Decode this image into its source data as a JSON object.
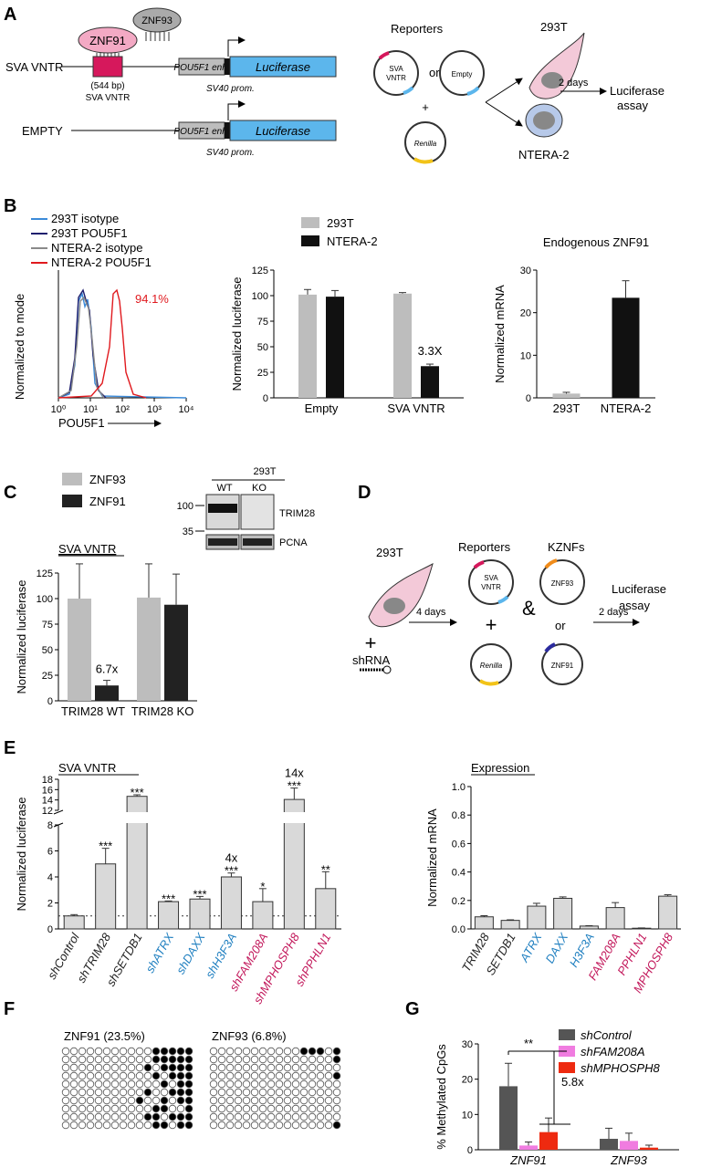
{
  "panels": {
    "A": "A",
    "B": "B",
    "C": "C",
    "D": "D",
    "E": "E",
    "F": "F",
    "G": "G"
  },
  "panelA": {
    "znf91": "ZNF91",
    "znf93": "ZNF93",
    "sva_vntr": "SVA VNTR",
    "vntr_len": "(544 bp)",
    "vntr_sub": "SVA VNTR",
    "enh": "POU5F1 enh.",
    "luc": "Luciferase",
    "sv40": "SV40 prom.",
    "empty": "EMPTY",
    "reporters": "Reporters",
    "or": "or",
    "plus": "+",
    "plasmid_sva": "SVA\nVNTR",
    "plasmid_empty": "Empty",
    "plasmid_renilla": "Renilla",
    "cell1": "293T",
    "cell2": "NTERA-2",
    "days": "2 days",
    "assay1": "Luciferase",
    "assay2": "assay"
  },
  "panelB_flow": {
    "legend": [
      {
        "name": "293T isotype",
        "color": "#3b8ad8"
      },
      {
        "name": "293T POU5F1",
        "color": "#1f1f6e"
      },
      {
        "name": "NTERA-2 isotype",
        "color": "#8a8a8a"
      },
      {
        "name": "NTERA-2 POU5F1",
        "color": "#e0191e"
      }
    ],
    "ylabel": "Normalized to mode",
    "xlabel": "POU5F1",
    "xticks": [
      "10⁰",
      "10¹",
      "10²",
      "10³",
      "10⁴"
    ],
    "pct": "94.1%"
  },
  "chart_data": [
    {
      "type": "bar",
      "id": "B-luciferase",
      "categories": [
        "Empty",
        "SVA VNTR"
      ],
      "series": [
        {
          "name": "293T",
          "values": [
            101,
            102
          ],
          "err": [
            5,
            1
          ],
          "color": "#bdbdbd"
        },
        {
          "name": "NTERA-2",
          "values": [
            99,
            31
          ],
          "err": [
            6,
            2
          ],
          "color": "#111111"
        }
      ],
      "ylabel": "Normalized luciferase",
      "ylim": [
        0,
        125
      ],
      "yticks": [
        "0",
        "25",
        "50",
        "75",
        "100",
        "125"
      ],
      "annotation": "3.3X"
    },
    {
      "type": "bar",
      "id": "B-endogenous",
      "title": "Endogenous ZNF91",
      "categories": [
        "293T",
        "NTERA-2"
      ],
      "values": [
        1,
        23.5
      ],
      "err": [
        0.3,
        4
      ],
      "colors": [
        "#bdbdbd",
        "#111111"
      ],
      "ylabel": "Normalized mRNA",
      "ylim": [
        0,
        30
      ],
      "yticks": [
        "0",
        "10",
        "20",
        "30"
      ]
    },
    {
      "type": "bar",
      "id": "C",
      "categories": [
        "TRIM28 WT",
        "TRIM28 KO"
      ],
      "series": [
        {
          "name": "ZNF93",
          "values": [
            100,
            101
          ],
          "err": [
            34,
            33
          ],
          "color": "#bdbdbd"
        },
        {
          "name": "ZNF91",
          "values": [
            15,
            94
          ],
          "err": [
            5,
            30
          ],
          "color": "#222222"
        }
      ],
      "title": "SVA VNTR",
      "ylabel": "Normalized luciferase",
      "ylim": [
        0,
        125
      ],
      "yticks": [
        "0",
        "25",
        "50",
        "75",
        "100",
        "125"
      ],
      "annotation": "6.7x"
    },
    {
      "type": "bar",
      "id": "E-luciferase",
      "title": "SVA VNTR",
      "categories": [
        "shControl",
        "shTRIM28",
        "shSETDB1",
        "shATRX",
        "shDAXX",
        "shH3F3A",
        "shFAM208A",
        "shMPHOSPH8",
        "shPPHLN1"
      ],
      "values": [
        1,
        5,
        14.7,
        2.1,
        2.3,
        4,
        2.1,
        14.1,
        3.1
      ],
      "err": [
        0.1,
        1.2,
        0.3,
        0.05,
        0.2,
        0.3,
        1,
        2.2,
        1.3
      ],
      "significance": [
        "",
        "***",
        "***",
        "***",
        "***",
        "***",
        "*",
        "***",
        "**"
      ],
      "above": [
        "",
        "",
        "",
        "",
        "",
        "4x",
        "",
        "14x",
        ""
      ],
      "label_colors": [
        "#222",
        "#222",
        "#222",
        "#1f7fc0",
        "#1f7fc0",
        "#1f7fc0",
        "#c2185b",
        "#c2185b",
        "#c2185b"
      ],
      "ylabel": "Normalized luciferase",
      "yticks_low": [
        "0",
        "2",
        "4",
        "6",
        "8"
      ],
      "yticks_high": [
        "12",
        "14",
        "16",
        "18"
      ]
    },
    {
      "type": "bar",
      "id": "E-expression",
      "title": "Expression",
      "categories": [
        "TRIM28",
        "SETDB1",
        "ATRX",
        "DAXX",
        "H3F3A",
        "FAM208A",
        "PPHLN1",
        "MPHOSPH8"
      ],
      "values": [
        0.085,
        0.06,
        0.16,
        0.215,
        0.02,
        0.15,
        0.005,
        0.23
      ],
      "err": [
        0.008,
        0.004,
        0.02,
        0.01,
        0.003,
        0.035,
        0.002,
        0.01
      ],
      "label_colors": [
        "#222",
        "#222",
        "#1f7fc0",
        "#1f7fc0",
        "#1f7fc0",
        "#c2185b",
        "#c2185b",
        "#c2185b"
      ],
      "ylabel": "Normalized mRNA",
      "ylim": [
        0,
        1.0
      ],
      "yticks": [
        "0.0",
        "0.2",
        "0.4",
        "0.6",
        "0.8",
        "1.0"
      ]
    },
    {
      "type": "bar",
      "id": "G",
      "categories": [
        "ZNF91",
        "ZNF93"
      ],
      "series": [
        {
          "name": "shControl",
          "values": [
            18,
            3.1
          ],
          "err": [
            6.5,
            3
          ],
          "color": "#555555"
        },
        {
          "name": "shFAM208A",
          "values": [
            1.2,
            2.5
          ],
          "err": [
            1,
            2.2
          ],
          "color": "#f07ce0"
        },
        {
          "name": "shMPHOSPH8",
          "values": [
            5,
            0.6
          ],
          "err": [
            4,
            0.7
          ],
          "color": "#ee2a10"
        }
      ],
      "ylabel": "% Methylated CpGs",
      "ylim": [
        0,
        30
      ],
      "yticks": [
        "0",
        "10",
        "20",
        "30"
      ],
      "sig": "**",
      "annotation": "5.8x"
    }
  ],
  "panelC_blot": {
    "cell": "293T",
    "wt": "WT",
    "ko": "KO",
    "mw100": "100",
    "mw35": "35",
    "trim28": "TRIM28",
    "pcna": "PCNA"
  },
  "panelD": {
    "cell": "293T",
    "plus": "+",
    "shrna": "shRNA",
    "days4": "4 days",
    "reporters": "Reporters",
    "kznfs": "KZNFs",
    "amp": "&",
    "or": "or",
    "znf93": "ZNF93",
    "znf91": "ZNF91",
    "sva": "SVA\nVNTR",
    "renilla": "Renilla",
    "days2": "2 days",
    "assay1": "Luciferase",
    "assay2": "assay"
  },
  "panelF": {
    "left": "ZNF91 (23.5%)",
    "right": "ZNF93 (6.8%)"
  }
}
